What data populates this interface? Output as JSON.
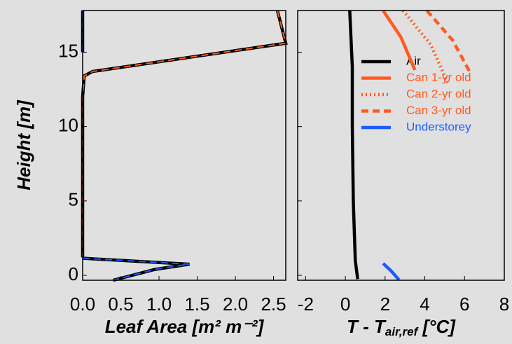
{
  "chart_data": [
    {
      "type": "line",
      "ylabel": "Height [m]",
      "xlabel": "Leaf Area [m² m⁻²]",
      "xlim": [
        0,
        2.66
      ],
      "ylim": [
        -0.33,
        17.8
      ],
      "xticks": [
        {
          "value": 0,
          "label": "0.0"
        },
        {
          "value": 0.5,
          "label": "0.5"
        },
        {
          "value": 1,
          "label": "1.0"
        },
        {
          "value": 1.5,
          "label": "1.5"
        },
        {
          "value": 2,
          "label": "2.0"
        },
        {
          "value": 2.5,
          "label": "2.5"
        }
      ],
      "yticks": [
        0,
        5,
        10,
        15
      ],
      "series": [
        {
          "color": "#ff5a1f",
          "outline": "#000000",
          "style": "dashed",
          "x": [
            2.55,
            2.66,
            0.13,
            0.02,
            0,
            0
          ],
          "y": [
            17.8,
            15.6,
            13.7,
            13.4,
            12,
            1.2
          ]
        },
        {
          "color": "#1a5cff",
          "outline": "#000000",
          "style": "dashed",
          "x": [
            0,
            0,
            null,
            0,
            1.4,
            0.95,
            0.4
          ],
          "y": [
            17.8,
            15,
            null,
            1.15,
            0.75,
            0.4,
            -0.33
          ]
        }
      ]
    },
    {
      "type": "line",
      "xlabel": "T - T",
      "xlabel_sub": "air,ref",
      "xlabel_end": " [°C]",
      "xlim": [
        -2.4,
        8.0
      ],
      "ylim": [
        -0.33,
        17.8
      ],
      "xticks": [
        -2,
        0,
        2,
        4,
        6,
        8
      ],
      "yticks": [
        0,
        5,
        10,
        15
      ],
      "series": [
        {
          "name": "Air",
          "color": "#000000",
          "style": "solid",
          "x": [
            0.22,
            0.35,
            0.35,
            0.4,
            0.5,
            0.62
          ],
          "y": [
            17.8,
            14,
            10,
            5,
            1,
            -0.25
          ]
        },
        {
          "name": "Can 1-yr old",
          "color": "#ff5a1f",
          "style": "solid",
          "x": [
            1.9,
            2.8,
            3.5
          ],
          "y": [
            17.8,
            16,
            13.8
          ]
        },
        {
          "name": "Can 2-yr old",
          "color": "#ff5a1f",
          "style": "dotted",
          "x": [
            2.9,
            4.3,
            5.2
          ],
          "y": [
            17.8,
            15.5,
            12.8
          ]
        },
        {
          "name": "Can 3-yr old",
          "color": "#ff5a1f",
          "style": "dashed",
          "x": [
            4.1,
            5.4,
            6.25
          ],
          "y": [
            17.8,
            15.8,
            13.7
          ]
        },
        {
          "name": "Understorey",
          "color": "#1a5cff",
          "style": "solid",
          "x": [
            1.9,
            2.3,
            2.7
          ],
          "y": [
            0.8,
            0.3,
            -0.3
          ]
        }
      ]
    }
  ]
}
